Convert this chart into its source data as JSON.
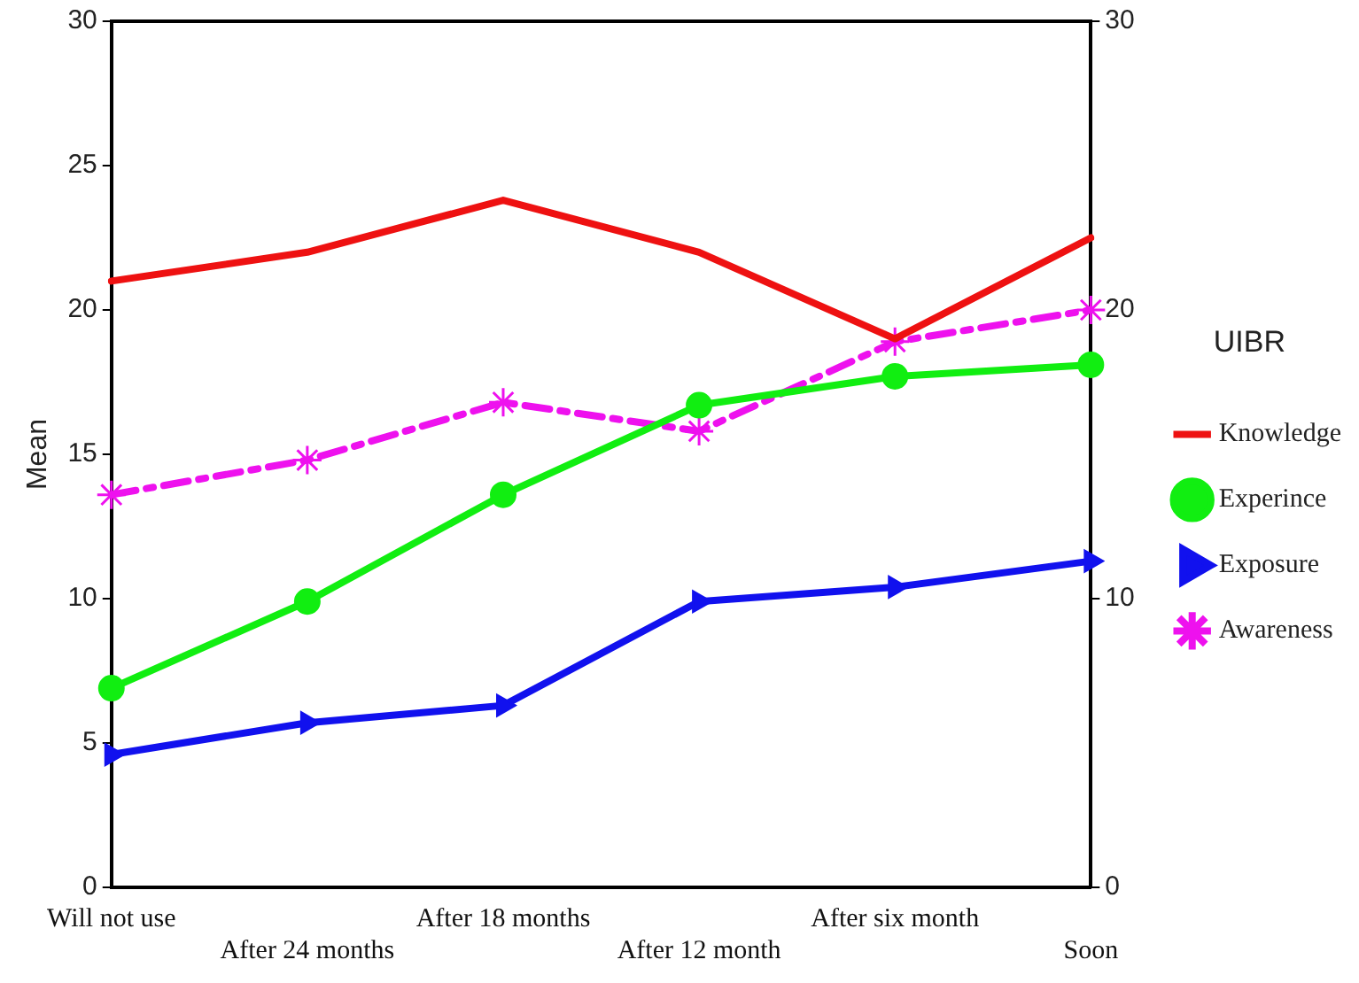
{
  "chart_data": {
    "type": "line",
    "ylabel": "Mean",
    "legend_title": "UIBR",
    "categories": [
      "Will not use",
      "After 24 months",
      "After 18 months",
      "After 12 month",
      "After six month",
      "Soon"
    ],
    "series": [
      {
        "name": "Knowledge",
        "color": "#ee1111",
        "marker": "none",
        "line_style": "solid",
        "values": [
          21.0,
          22.0,
          23.8,
          22.0,
          19.0,
          22.5
        ]
      },
      {
        "name": "Experince",
        "color": "#11ee11",
        "marker": "circle",
        "line_style": "solid",
        "values": [
          6.9,
          9.9,
          13.6,
          16.7,
          17.7,
          18.1
        ]
      },
      {
        "name": "Exposure",
        "color": "#1111ee",
        "marker": "triangle",
        "line_style": "solid",
        "values": [
          4.6,
          5.7,
          6.3,
          9.9,
          10.4,
          11.3
        ]
      },
      {
        "name": "Awareness",
        "color": "#ee11ee",
        "marker": "cross",
        "line_style": "dashed",
        "values": [
          13.6,
          14.8,
          16.8,
          15.8,
          18.9,
          20.0
        ]
      }
    ],
    "ylim": [
      0,
      30
    ],
    "yticks": [
      0,
      5,
      10,
      15,
      20,
      25,
      30
    ],
    "y2lim": [
      0,
      30
    ],
    "y2ticks": [
      0,
      10,
      20,
      30
    ],
    "grid": false,
    "legend": "right"
  }
}
